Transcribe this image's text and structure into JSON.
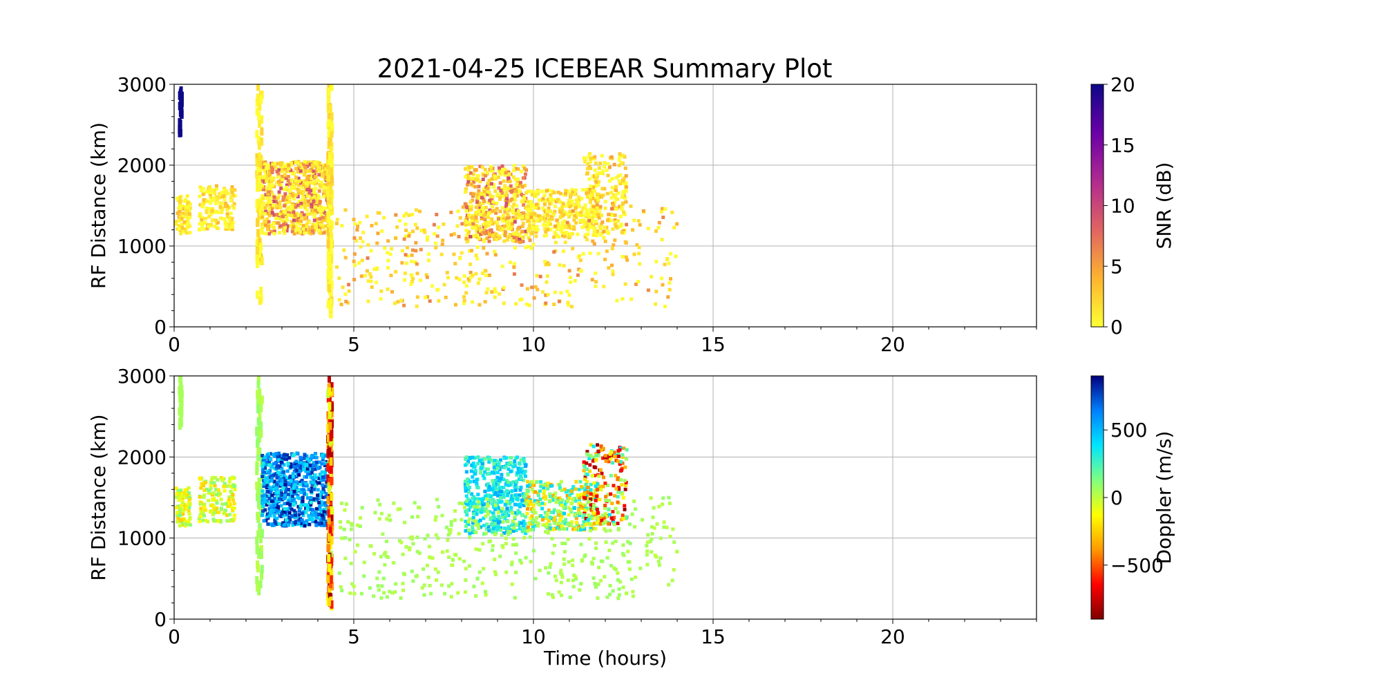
{
  "figure": {
    "title": "2021-04-25 ICEBEAR Summary Plot"
  },
  "chart_data": [
    {
      "type": "scatter",
      "panel": "top",
      "xlabel": "",
      "ylabel": "RF Distance (km)",
      "xlim": [
        0,
        24
      ],
      "ylim": [
        0,
        3000
      ],
      "xticks": [
        "0",
        "5",
        "10",
        "15",
        "20"
      ],
      "yticks": [
        "0",
        "1000",
        "2000",
        "3000"
      ],
      "grid": true,
      "color_by": "snr",
      "colorbar": {
        "label": "SNR (dB)",
        "range": [
          0,
          20
        ],
        "ticks": [
          "0",
          "5",
          "10",
          "15",
          "20"
        ],
        "colormap": [
          "#ffff33",
          "#fdb42f",
          "#e16462",
          "#b12a90",
          "#6a00a8",
          "#0d0887"
        ]
      },
      "clusters": [
        {
          "t": [
            0.05,
            0.45
          ],
          "r": [
            1150,
            1620
          ],
          "n": 90,
          "snr": [
            0,
            4
          ],
          "dop": [
            -300,
            150
          ]
        },
        {
          "t": [
            0.15,
            0.22
          ],
          "r": [
            2380,
            2980
          ],
          "n": 30,
          "snr": [
            20,
            20
          ],
          "dop": [
            50,
            50
          ]
        },
        {
          "t": [
            0.7,
            1.7
          ],
          "r": [
            1200,
            1750
          ],
          "n": 150,
          "snr": [
            0,
            4
          ],
          "dop": [
            -250,
            150
          ]
        },
        {
          "t": [
            2.3,
            2.45
          ],
          "r": [
            300,
            2980
          ],
          "n": 80,
          "snr": [
            0,
            3
          ],
          "dop": [
            0,
            100
          ]
        },
        {
          "t": [
            2.45,
            4.3
          ],
          "r": [
            1150,
            2050
          ],
          "n": 700,
          "snr": [
            0,
            10
          ],
          "dop": [
            300,
            880
          ]
        },
        {
          "t": [
            4.28,
            4.4
          ],
          "r": [
            150,
            2980
          ],
          "n": 160,
          "snr": [
            0,
            3
          ],
          "dop": [
            -880,
            50
          ]
        },
        {
          "t": [
            8.1,
            9.8
          ],
          "r": [
            1050,
            2000
          ],
          "n": 450,
          "snr": [
            0,
            10
          ],
          "dop": [
            150,
            550
          ]
        },
        {
          "t": [
            9.8,
            11.8
          ],
          "r": [
            1100,
            1700
          ],
          "n": 320,
          "snr": [
            0,
            4
          ],
          "dop": [
            -400,
            450
          ]
        },
        {
          "t": [
            11.4,
            12.6
          ],
          "r": [
            1150,
            2150
          ],
          "n": 200,
          "snr": [
            0,
            5
          ],
          "dop": [
            -880,
            400
          ]
        },
        {
          "t": [
            4.5,
            14.0
          ],
          "r": [
            250,
            1500
          ],
          "n": 420,
          "snr": [
            0,
            7
          ],
          "dop": [
            0,
            80
          ]
        }
      ]
    },
    {
      "type": "scatter",
      "panel": "bottom",
      "xlabel": "Time (hours)",
      "ylabel": "RF Distance (km)",
      "xlim": [
        0,
        24
      ],
      "ylim": [
        0,
        3000
      ],
      "xticks": [
        "0",
        "5",
        "10",
        "15",
        "20"
      ],
      "yticks": [
        "0",
        "1000",
        "2000",
        "3000"
      ],
      "grid": true,
      "color_by": "doppler",
      "colorbar": {
        "label": "Doppler (m/s)",
        "range": [
          -900,
          900
        ],
        "ticks": [
          "−500",
          "0",
          "500"
        ],
        "tick_values": [
          -500,
          0,
          500
        ],
        "colormap": [
          "#7f0000",
          "#ff0000",
          "#ff9900",
          "#ffff00",
          "#80ff7f",
          "#00e5ff",
          "#0080ff",
          "#00007f"
        ]
      }
    }
  ]
}
